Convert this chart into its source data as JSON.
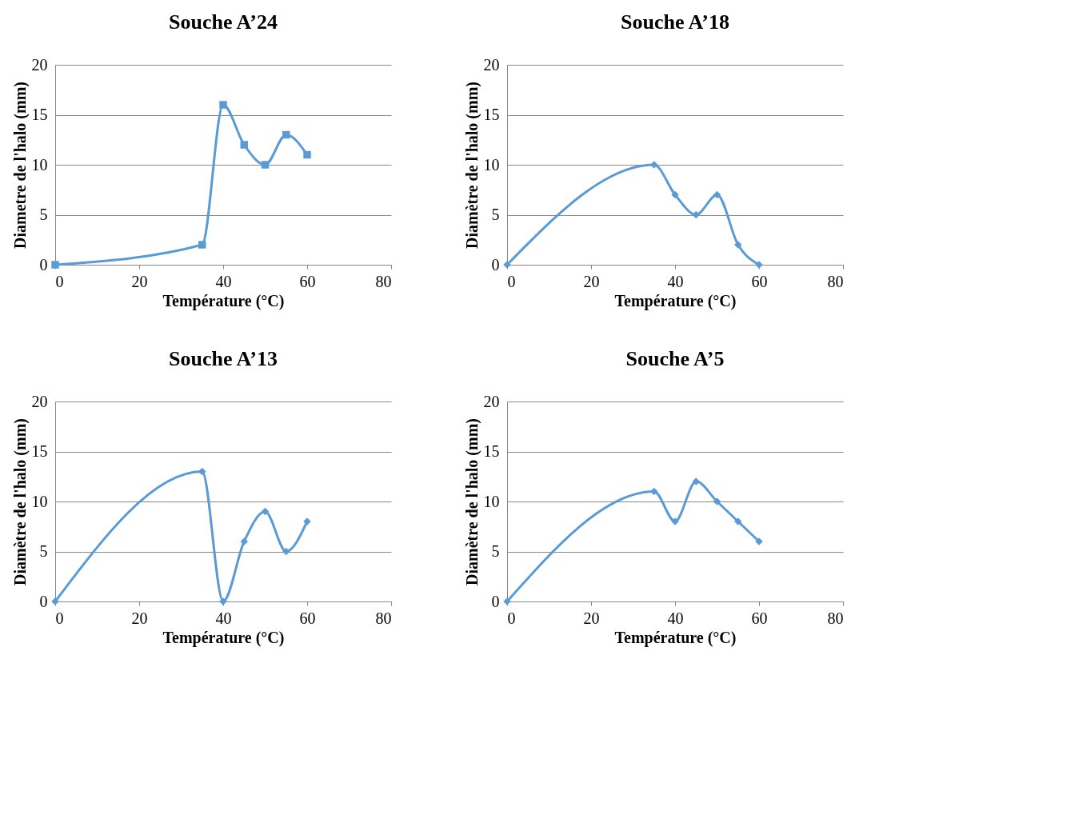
{
  "chart_data": [
    {
      "type": "line",
      "title": "Souche A’24",
      "xlabel": "Température (°C)",
      "ylabel": "Diametre de l'halo (mm)",
      "x": [
        0,
        35,
        40,
        45,
        50,
        55,
        60
      ],
      "series": [
        {
          "color": "#5b9bd5",
          "values": [
            0,
            2,
            16,
            12,
            10,
            13,
            11
          ]
        }
      ],
      "xlim": [
        0,
        80
      ],
      "xticks": [
        0,
        20,
        40,
        60,
        80
      ],
      "ylim": [
        0,
        20
      ],
      "yticks": [
        0,
        5,
        10,
        15,
        20
      ],
      "grid": "y",
      "legend": false,
      "marker": "square",
      "line_style": "solid"
    },
    {
      "type": "line",
      "title": "Souche A’18",
      "xlabel": "Température (°C)",
      "ylabel": "Diamètre de l'halo (mm)",
      "x": [
        0,
        35,
        40,
        45,
        50,
        55,
        60
      ],
      "series": [
        {
          "color": "#5b9bd5",
          "values": [
            0,
            10,
            7,
            5,
            7,
            2,
            0
          ]
        }
      ],
      "xlim": [
        0,
        80
      ],
      "xticks": [
        0,
        20,
        40,
        60,
        80
      ],
      "ylim": [
        0,
        20
      ],
      "yticks": [
        0,
        5,
        10,
        15,
        20
      ],
      "grid": "y",
      "legend": false,
      "marker": "diamond",
      "line_style": "solid"
    },
    {
      "type": "line",
      "title": "Souche A’13",
      "xlabel": "Température (°C)",
      "ylabel": "Diamètre de l'halo (mm)",
      "x": [
        0,
        35,
        40,
        45,
        50,
        55,
        60
      ],
      "series": [
        {
          "color": "#5b9bd5",
          "values": [
            0,
            13,
            0,
            6,
            9,
            5,
            8
          ]
        }
      ],
      "xlim": [
        0,
        80
      ],
      "xticks": [
        0,
        20,
        40,
        60,
        80
      ],
      "ylim": [
        0,
        20
      ],
      "yticks": [
        0,
        5,
        10,
        15,
        20
      ],
      "grid": "y",
      "legend": false,
      "marker": "diamond",
      "line_style": "solid"
    },
    {
      "type": "line",
      "title": "Souche A’5",
      "xlabel": "Température (°C)",
      "ylabel": "Diamètre de l'halo (mm)",
      "x": [
        0,
        35,
        40,
        45,
        50,
        55,
        60
      ],
      "series": [
        {
          "color": "#5b9bd5",
          "values": [
            0,
            11,
            8,
            12,
            10,
            8,
            6
          ]
        }
      ],
      "xlim": [
        0,
        80
      ],
      "xticks": [
        0,
        20,
        40,
        60,
        80
      ],
      "ylim": [
        0,
        20
      ],
      "yticks": [
        0,
        5,
        10,
        15,
        20
      ],
      "grid": "y",
      "legend": false,
      "marker": "diamond",
      "line_style": "solid"
    }
  ]
}
